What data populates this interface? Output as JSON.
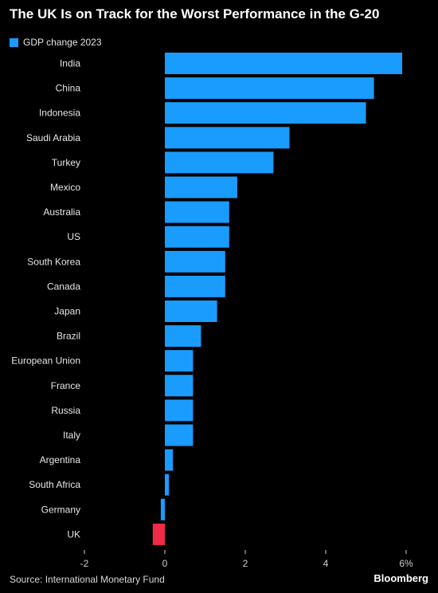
{
  "title": "The UK Is on Track for the Worst Performance in the G-20",
  "legend": {
    "label": "GDP change 2023"
  },
  "colors": {
    "positive": "#1a9cff",
    "highlight": "#ef2b48",
    "axis_text": "#cfcfcf",
    "label_text": "#e6e6e6",
    "zero_line": "#9a9a9a"
  },
  "chart_data": {
    "type": "bar",
    "orientation": "horizontal",
    "categories": [
      "India",
      "China",
      "Indonesia",
      "Saudi Arabia",
      "Turkey",
      "Mexico",
      "Australia",
      "US",
      "South Korea",
      "Canada",
      "Japan",
      "Brazil",
      "European Union",
      "France",
      "Russia",
      "Italy",
      "Argentina",
      "South Africa",
      "Germany",
      "UK"
    ],
    "series": [
      {
        "name": "GDP change 2023",
        "values": [
          5.9,
          5.2,
          5.0,
          3.1,
          2.7,
          1.8,
          1.6,
          1.6,
          1.5,
          1.5,
          1.3,
          0.9,
          0.7,
          0.7,
          0.7,
          0.7,
          0.2,
          0.1,
          -0.1,
          -0.3
        ]
      }
    ],
    "highlight_category": "UK",
    "xlim": [
      -2,
      6
    ],
    "xticks": [
      -2,
      0,
      2,
      4,
      6
    ],
    "xtick_labels": [
      "-2",
      "0",
      "2",
      "4",
      "6%"
    ],
    "legend_position": "top-left",
    "grid": false
  },
  "footer": {
    "source": "Source: International Monetary Fund",
    "brand": "Bloomberg"
  }
}
